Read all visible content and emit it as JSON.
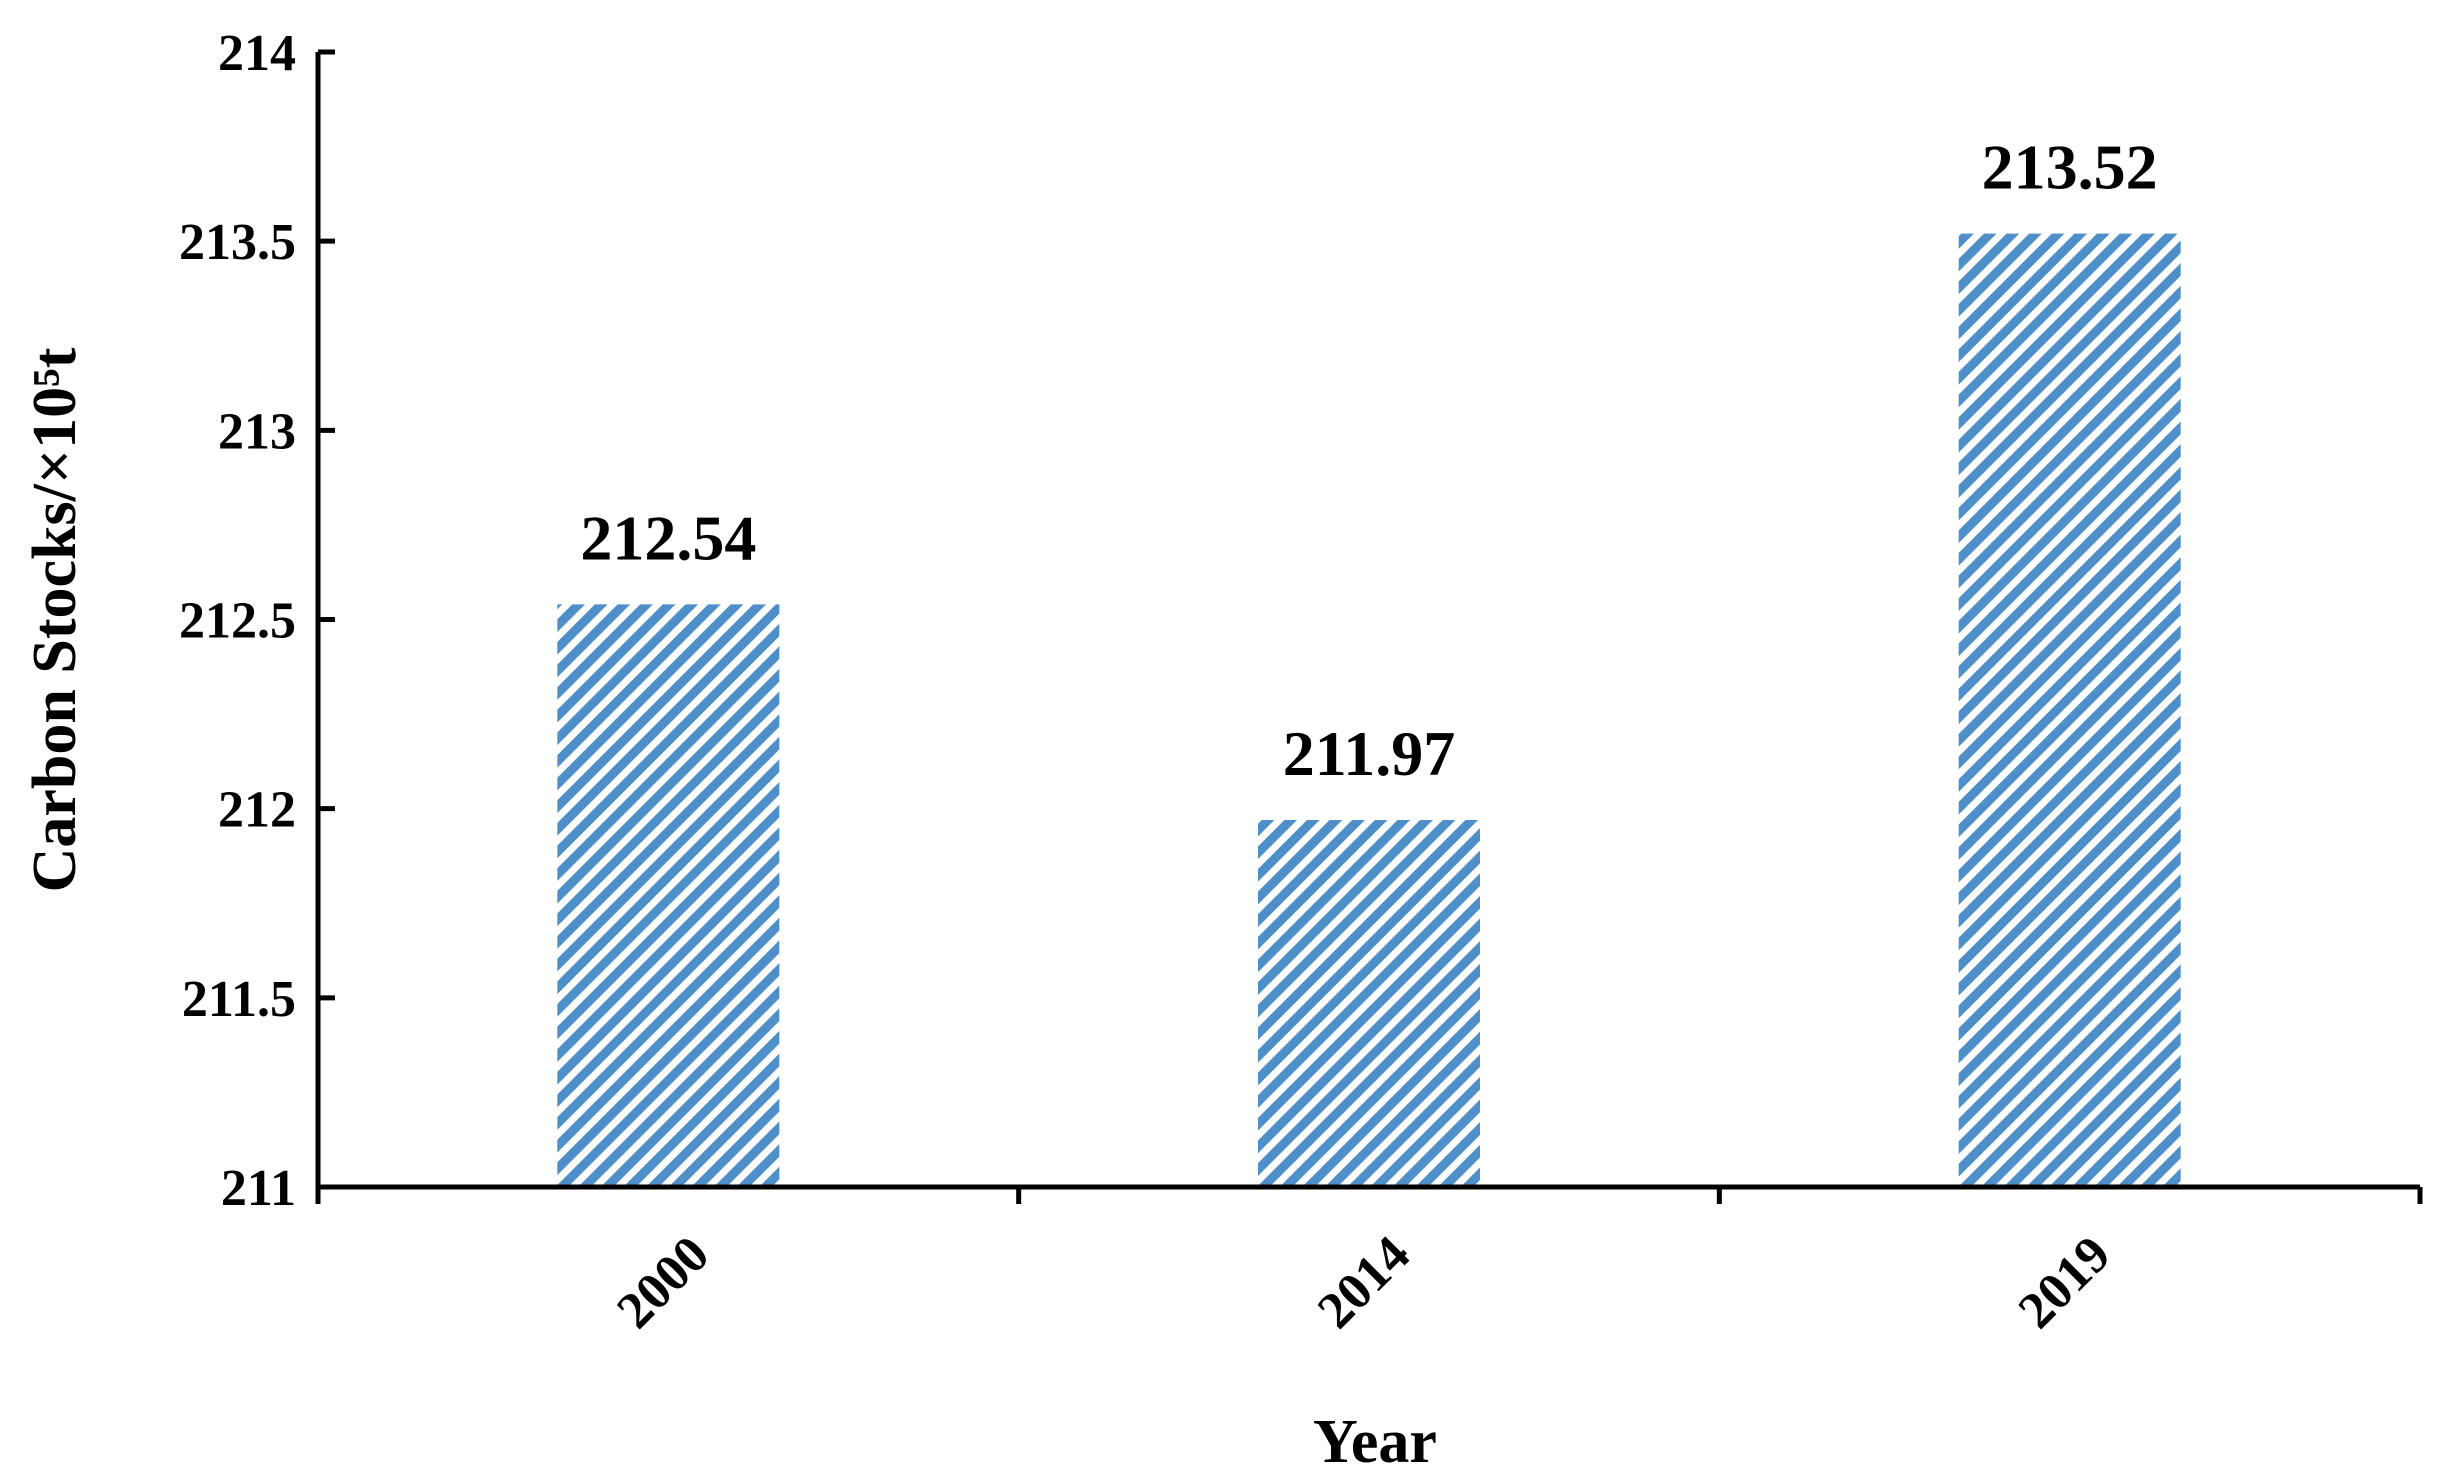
{
  "colors": {
    "bar_stripe": "#4f8fc9",
    "bar_background": "#ffffff",
    "axis": "#000000",
    "text": "#000000"
  },
  "chart_data": {
    "type": "bar",
    "title": "",
    "xlabel": "Year",
    "ylabel": "Carbon Stocks/×10⁵t",
    "categories": [
      "2000",
      "2014",
      "2019"
    ],
    "values": [
      212.54,
      211.97,
      213.52
    ],
    "data_labels": [
      "212.54",
      "211.97",
      "213.52"
    ],
    "ylim": [
      211,
      214
    ],
    "y_ticks": [
      211,
      211.5,
      212,
      212.5,
      213,
      213.5,
      214
    ],
    "y_tick_labels": [
      "211",
      "211.5",
      "212",
      "212.5",
      "213",
      "213.5",
      "214"
    ],
    "bar_fill": "diagonal-hatch",
    "grid": false,
    "legend": "none",
    "x_tick_label_rotation": "-45°"
  }
}
